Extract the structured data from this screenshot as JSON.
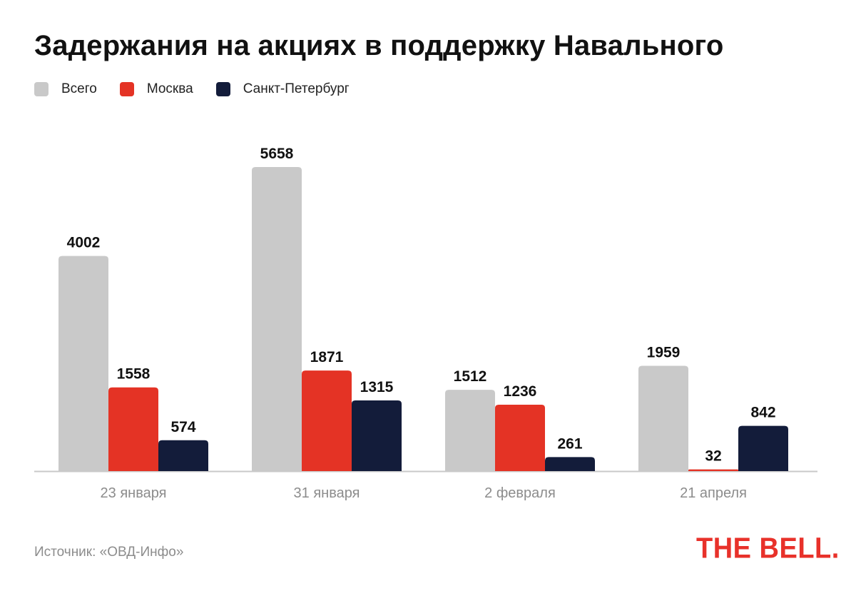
{
  "title": "Задержания на акциях в поддержку Навального",
  "legend": [
    {
      "label": "Всего",
      "color": "#c9c9c9"
    },
    {
      "label": "Москва",
      "color": "#e43325"
    },
    {
      "label": "Санкт-Петербург",
      "color": "#131c3a"
    }
  ],
  "source": "Источник: «ОВД-Инфо»",
  "logo": "THE BELL.",
  "chart_data": {
    "type": "bar",
    "categories": [
      "23 января",
      "31 января",
      "2 февраля",
      "21 апреля"
    ],
    "series": [
      {
        "name": "Всего",
        "color": "#c9c9c9",
        "values": [
          4002,
          5658,
          1512,
          1959
        ]
      },
      {
        "name": "Москва",
        "color": "#e43325",
        "values": [
          1558,
          1871,
          1236,
          32
        ]
      },
      {
        "name": "Санкт-Петербург",
        "color": "#131c3a",
        "values": [
          574,
          1315,
          261,
          842
        ]
      }
    ],
    "title": "Задержания на акциях в поддержку Навального",
    "xlabel": "",
    "ylabel": "",
    "ylim": [
      0,
      5658
    ],
    "grid": false,
    "legend_position": "top-left",
    "data_labels": true
  }
}
